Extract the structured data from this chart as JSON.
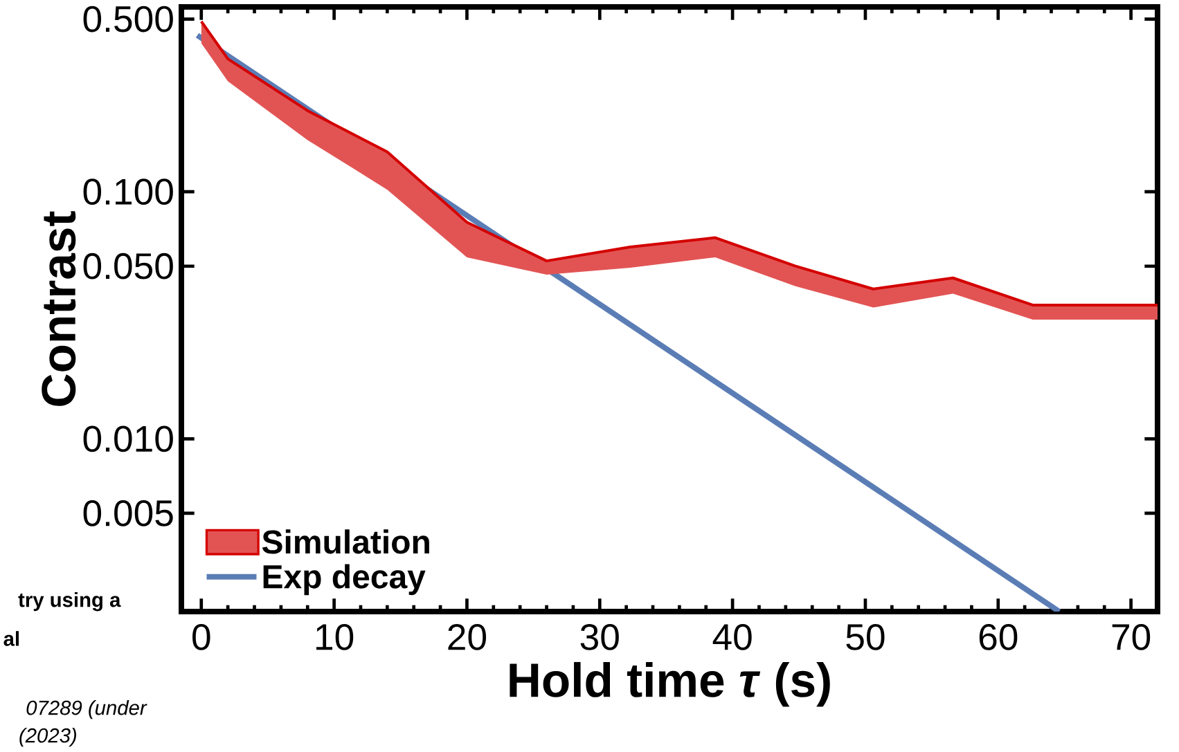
{
  "chart_data": {
    "type": "line",
    "xlabel": "Hold time *τ* (s)",
    "ylabel": "Contrast",
    "xlim": [
      -1.5,
      72
    ],
    "ylim": [
      0.002,
      0.56
    ],
    "log": "y",
    "xticks": [
      0,
      10,
      20,
      30,
      40,
      50,
      60,
      70
    ],
    "yticks": [
      {
        "value": 0.005,
        "label": "0.005"
      },
      {
        "value": 0.01,
        "label": "0.010"
      },
      {
        "value": 0.05,
        "label": "0.050"
      },
      {
        "value": 0.1,
        "label": "0.100"
      },
      {
        "value": 0.5,
        "label": "0.500"
      }
    ],
    "legend": "bottom left",
    "series": [
      {
        "name": "Simulation",
        "color": "#d40000",
        "x": [
          0,
          2,
          8,
          14,
          20,
          26,
          32.3,
          38.7,
          44.7,
          50.6,
          56.6,
          62.6,
          72
        ],
        "values": [
          0.489,
          0.345,
          0.213,
          0.145,
          0.0753,
          0.0525,
          0.0598,
          0.0652,
          0.0501,
          0.0404,
          0.0448,
          0.0348,
          0.0348
        ],
        "upper": [
          0.489,
          0.345,
          0.213,
          0.145,
          0.0753,
          0.0525,
          0.0598,
          0.0652,
          0.0501,
          0.0404,
          0.0448,
          0.0348,
          0.0348
        ],
        "lower": [
          0.399,
          0.28,
          0.162,
          0.102,
          0.0543,
          0.0462,
          0.0493,
          0.0543,
          0.0415,
          0.034,
          0.0387,
          0.0304,
          0.0304
        ]
      },
      {
        "name": "Exp decay",
        "type": "line",
        "color": "#5b7db5",
        "x": [
          -0.3,
          64.6
        ],
        "values": [
          0.43,
          0.002
        ]
      }
    ],
    "annotations": [
      "try using a",
      "al",
      "07289 (under",
      "(2023)"
    ]
  }
}
